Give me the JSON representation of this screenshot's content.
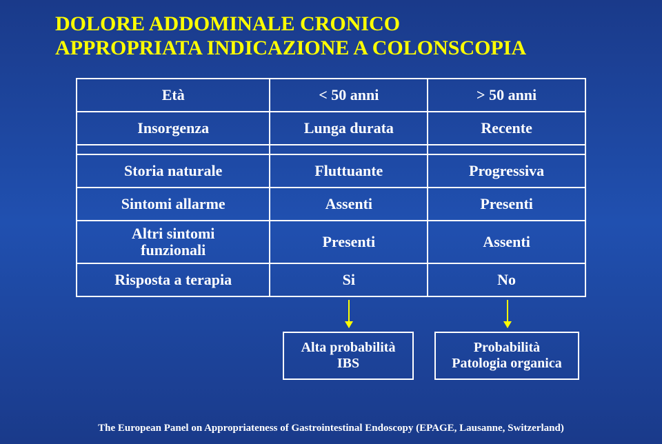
{
  "title": {
    "line1": "DOLORE ADDOMINALE CRONICO",
    "line2": "APPROPRIATA INDICAZIONE A COLONSCOPIA"
  },
  "table": {
    "rows": [
      {
        "label": "Età",
        "col1": "< 50 anni",
        "col2": "> 50 anni"
      },
      {
        "label": "Insorgenza",
        "col1": "Lunga durata",
        "col2": "Recente"
      },
      {
        "label": "Storia naturale",
        "col1": "Fluttuante",
        "col2": "Progressiva"
      },
      {
        "label": "Sintomi allarme",
        "col1": "Assenti",
        "col2": "Presenti"
      },
      {
        "label": "Altri sintomi\nfunzionali",
        "col1": "Presenti",
        "col2": "Assenti"
      },
      {
        "label": "Risposta a terapia",
        "col1": "Si",
        "col2": "No"
      }
    ]
  },
  "results": {
    "left": {
      "line1": "Alta probabilità",
      "line2": "IBS"
    },
    "right": {
      "line1": "Probabilità",
      "line2": "Patologia organica"
    }
  },
  "footer": "The European Panel on Appropriateness of Gastrointestinal Endoscopy (EPAGE, Lausanne, Switzerland)",
  "colors": {
    "title": "#ffff00",
    "text": "#ffffff",
    "border": "#ffffff",
    "arrow": "#ffff00",
    "bg_top": "#1a3a8a",
    "bg_mid": "#2050b0"
  },
  "fonts": {
    "family": "Times New Roman",
    "title_size": 30,
    "cell_size": 22,
    "box_size": 20,
    "footer_size": 15
  }
}
